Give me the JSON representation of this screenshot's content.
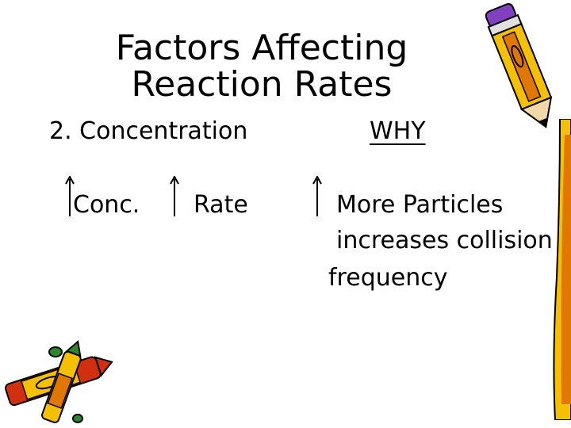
{
  "slide": {
    "title_line1": "Factors Affecting",
    "title_line2": "Reaction Rates",
    "subheading": "2. Concentration",
    "why_heading": "WHY",
    "conc_label": "Conc.",
    "rate_label": "Rate",
    "explanation_line1": "More Particles",
    "explanation_line2": "increases collision",
    "explanation_line3": "frequency"
  },
  "icons": {
    "increase_arrow": "up-arrow-icon",
    "decoration_top_right": "pencil-icon",
    "decoration_bottom_left": "crayons-icon"
  },
  "colors": {
    "text": "#000000",
    "pencil_yellow": "#f5c000",
    "pencil_orange": "#e07800",
    "crayon_red": "#d03010",
    "crayon_green": "#2a8a2a",
    "accent_purple": "#8040c0"
  }
}
